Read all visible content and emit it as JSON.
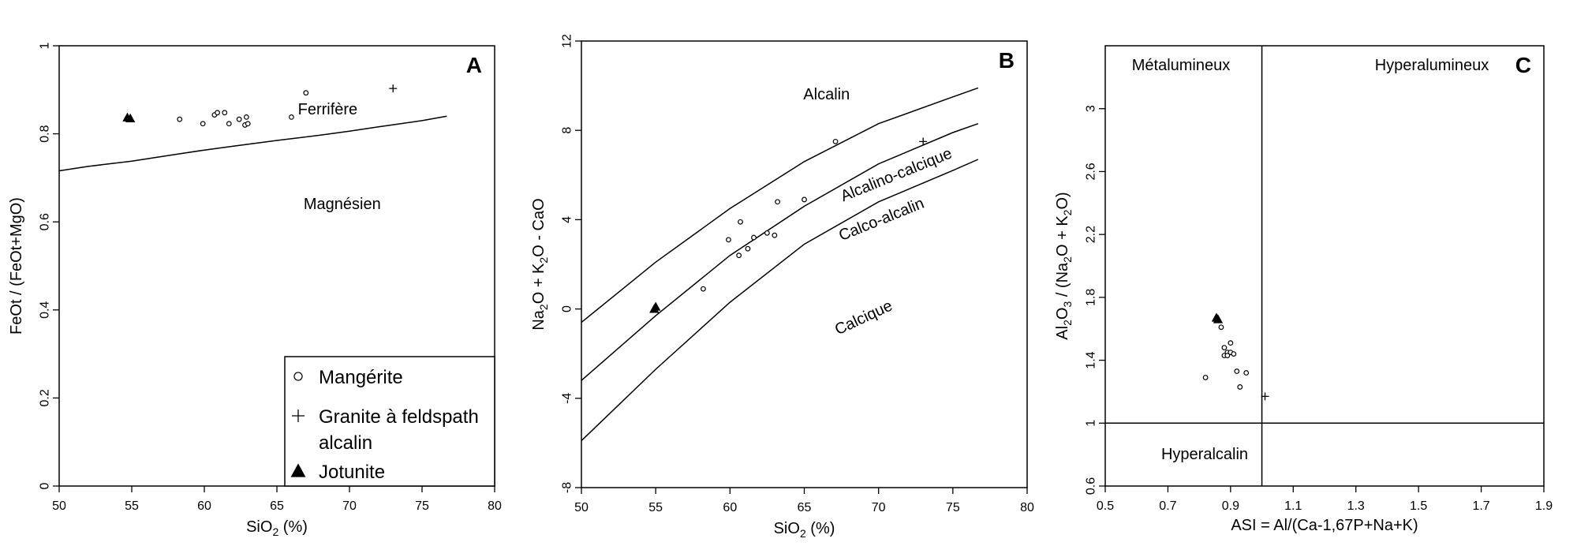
{
  "chart_data": [
    {
      "panel": "A",
      "type": "scatter",
      "xlim": [
        50,
        80
      ],
      "ylim": [
        0,
        1
      ],
      "x_ticks": [
        "50",
        "55",
        "60",
        "65",
        "70",
        "75",
        "80"
      ],
      "y_ticks": [
        "0",
        "0.2",
        "0.4",
        "0.6",
        "0.8",
        "1"
      ],
      "xlabel_main": "SiO",
      "xlabel_sub": "2",
      "xlabel_tail": " (%)",
      "ylabel": "FeOt / (FeOt+MgO)",
      "region_labels": [
        "Ferrifère",
        "Magnésien"
      ],
      "boundary": {
        "x": [
          50,
          52,
          55,
          58,
          60,
          62,
          65,
          68,
          70,
          72,
          75,
          76.7
        ],
        "y": [
          0.716,
          0.726,
          0.738,
          0.753,
          0.763,
          0.772,
          0.785,
          0.797,
          0.806,
          0.816,
          0.83,
          0.84
        ]
      },
      "series": [
        {
          "name": "Mangérite",
          "marker": "circle",
          "x": [
            58.3,
            59.9,
            60.7,
            60.9,
            61.4,
            61.7,
            62.4,
            62.8,
            62.9,
            63.0,
            66.0,
            67.0
          ],
          "y": [
            0.833,
            0.823,
            0.843,
            0.848,
            0.848,
            0.823,
            0.833,
            0.82,
            0.838,
            0.823,
            0.838,
            0.893
          ]
        },
        {
          "name": "Granite à feldspath alcalin",
          "marker": "plus",
          "x": [
            73.0
          ],
          "y": [
            0.903
          ]
        },
        {
          "name": "Jotunite",
          "marker": "triangle",
          "x": [
            54.7,
            54.9
          ],
          "y": [
            0.837,
            0.835
          ]
        }
      ],
      "legend": {
        "placement": "bottom-right",
        "items": [
          {
            "marker": "circle",
            "lines": [
              "Mangérite"
            ]
          },
          {
            "marker": "plus",
            "lines": [
              "Granite à feldspath",
              "alcalin"
            ]
          },
          {
            "marker": "triangle",
            "lines": [
              "Jotunite"
            ]
          }
        ]
      }
    },
    {
      "panel": "B",
      "type": "scatter",
      "xlim": [
        50,
        80
      ],
      "ylim": [
        -8,
        12
      ],
      "x_ticks": [
        "50",
        "55",
        "60",
        "65",
        "70",
        "75",
        "80"
      ],
      "y_ticks": [
        "-8",
        "-4",
        "0",
        "4",
        "8",
        "12"
      ],
      "xlabel_main": "SiO",
      "xlabel_sub": "2",
      "xlabel_tail": " (%)",
      "ylabel_parts": [
        "Na",
        "2",
        "O + K",
        "2",
        "O - CaO"
      ],
      "region_labels": [
        "Alcalin",
        "Alcalino-calcique",
        "Calco-alcalin",
        "Calcique"
      ],
      "boundaries": [
        {
          "x": [
            50,
            55,
            60,
            65,
            70,
            75,
            76.7
          ],
          "y": [
            -0.6,
            2.1,
            4.5,
            6.6,
            8.3,
            9.5,
            9.9
          ]
        },
        {
          "x": [
            50,
            55,
            60,
            65,
            70,
            75,
            76.7
          ],
          "y": [
            -3.2,
            -0.3,
            2.4,
            4.6,
            6.5,
            7.9,
            8.3
          ]
        },
        {
          "x": [
            50,
            55,
            60,
            65,
            70,
            75,
            76.7
          ],
          "y": [
            -5.9,
            -2.7,
            0.3,
            2.9,
            4.8,
            6.2,
            6.7
          ]
        }
      ],
      "series": [
        {
          "name": "Mangérite",
          "marker": "circle",
          "x": [
            58.2,
            59.9,
            60.6,
            60.7,
            61.2,
            61.6,
            62.5,
            63.0,
            63.2,
            65.0,
            67.1
          ],
          "y": [
            0.9,
            3.1,
            2.4,
            3.9,
            2.7,
            3.2,
            3.4,
            3.3,
            4.8,
            4.9,
            7.5
          ]
        },
        {
          "name": "Granite à feldspath alcalin",
          "marker": "plus",
          "x": [
            73.0
          ],
          "y": [
            7.5
          ]
        },
        {
          "name": "Jotunite",
          "marker": "triangle",
          "x": [
            54.9,
            55.0
          ],
          "y": [
            0.0,
            0.1
          ]
        }
      ]
    },
    {
      "panel": "C",
      "type": "scatter",
      "xlim": [
        0.5,
        1.9
      ],
      "ylim": [
        0.6,
        3.4
      ],
      "x_ticks": [
        "0.5",
        "0.7",
        "0.9",
        "1.1",
        "1.3",
        "1.5",
        "1.7",
        "1.9"
      ],
      "y_ticks": [
        "0.6",
        "1",
        "1.4",
        "1.8",
        "2.2",
        "2.6",
        "3"
      ],
      "xlabel": "ASI = Al/(Ca-1,67P+Na+K)",
      "ylabel_parts": [
        "Al",
        "2",
        "O",
        "3",
        " / (Na",
        "2",
        "O + K",
        "2",
        "O)"
      ],
      "region_labels": [
        "Métalumineux",
        "Hyperalumineux",
        "Hyperalcalin"
      ],
      "divider_x": 1.0,
      "divider_y": 1.0,
      "series": [
        {
          "name": "Mangérite",
          "marker": "circle",
          "x": [
            0.82,
            0.87,
            0.88,
            0.88,
            0.89,
            0.89,
            0.9,
            0.9,
            0.91,
            0.92,
            0.93,
            0.95
          ],
          "y": [
            1.29,
            1.61,
            1.48,
            1.43,
            1.45,
            1.43,
            1.51,
            1.45,
            1.44,
            1.33,
            1.23,
            1.32
          ]
        },
        {
          "name": "Granite à feldspath alcalin",
          "marker": "plus",
          "x": [
            1.01
          ],
          "y": [
            1.17
          ]
        },
        {
          "name": "Jotunite",
          "marker": "triangle",
          "x": [
            0.855,
            0.86
          ],
          "y": [
            1.67,
            1.66
          ]
        }
      ]
    }
  ]
}
